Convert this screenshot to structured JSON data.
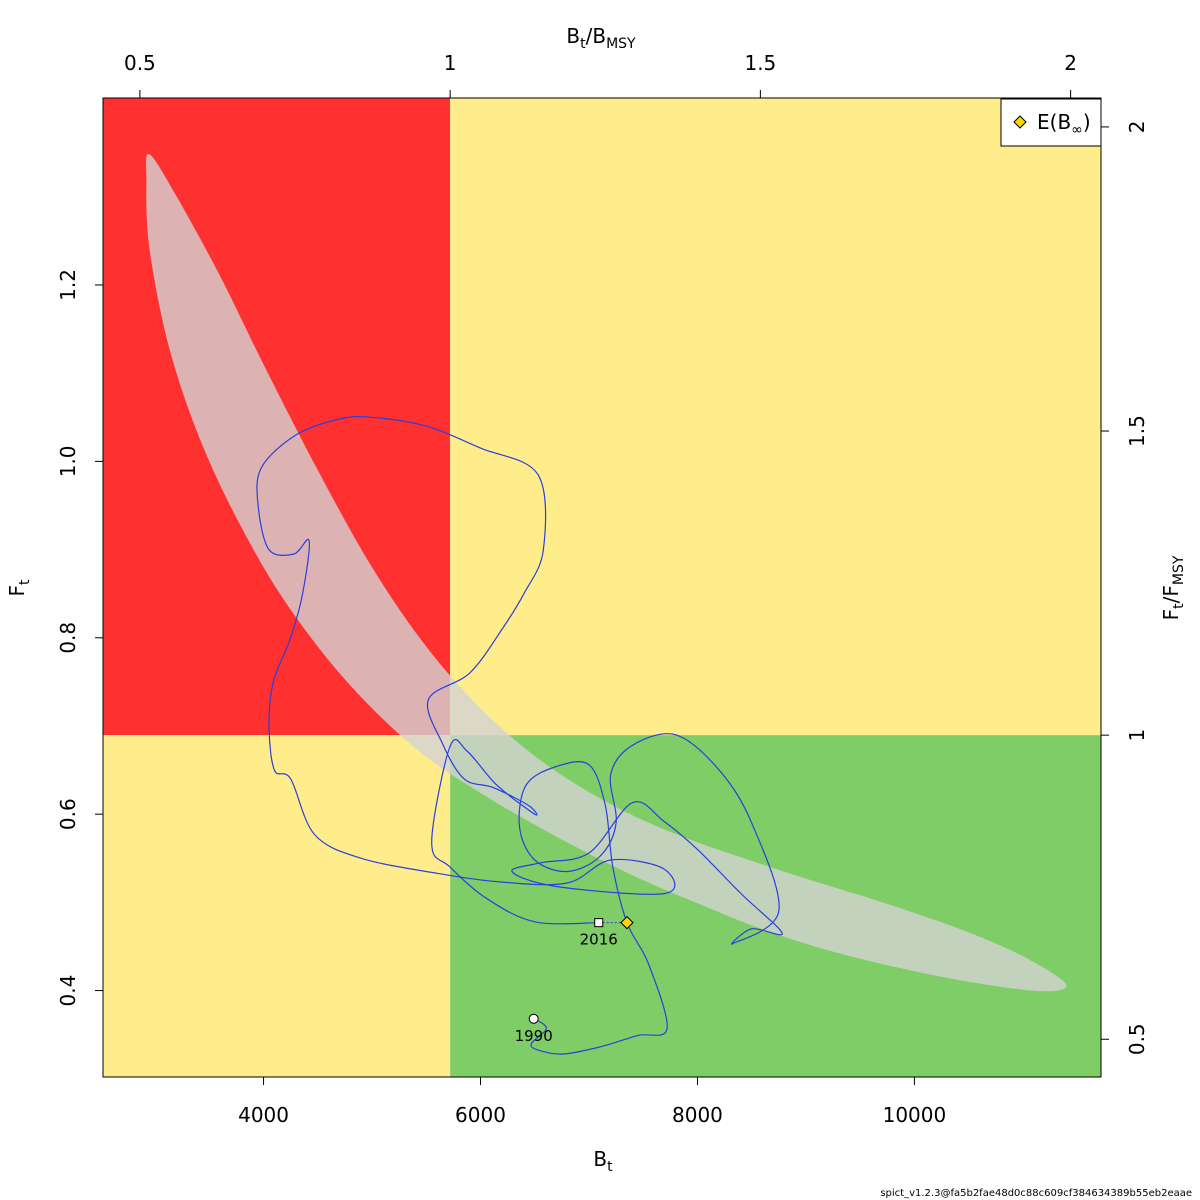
{
  "chart_data": {
    "type": "line",
    "xlabel": {
      "main": "B",
      "sub": "t"
    },
    "ylabel": {
      "main": "F",
      "sub": "t"
    },
    "x2label": {
      "num": "B",
      "num_sub": "t",
      "den": "B",
      "den_sub": "MSY"
    },
    "y2label": {
      "num": "F",
      "num_sub": "t",
      "den": "F",
      "den_sub": "MSY"
    },
    "xlim": [
      2520,
      11720
    ],
    "ylim": [
      0.302,
      1.412
    ],
    "x_ticks": [
      4000,
      6000,
      8000,
      10000
    ],
    "x_tick_labels": [
      "4000",
      "6000",
      "8000",
      "10000"
    ],
    "y_ticks": [
      0.4,
      0.6,
      0.8,
      1.0,
      1.2
    ],
    "y_tick_labels": [
      "0.4",
      "0.6",
      "0.8",
      "1.0",
      "1.2"
    ],
    "bmsy": 5720,
    "fmsy": 0.6896,
    "x2_ticks": [
      0.5,
      1,
      1.5,
      2
    ],
    "x2_tick_labels": [
      "0.5",
      "1",
      "1.5",
      "2"
    ],
    "y2_ticks": [
      0.5,
      1,
      1.5,
      2
    ],
    "y2_tick_labels": [
      "0.5",
      "1",
      "1.5",
      "2"
    ],
    "zone_colors": {
      "red": "#ff3030",
      "yellow": "#ffec8b",
      "green": "#7fcd66"
    },
    "ellipse_color": "#d3d3d3",
    "line_color": "#2b3fdc",
    "legend": {
      "position": "top-right",
      "entries": [
        {
          "label": "E(B",
          "sub": "∞",
          "close": ")",
          "marker": "diamond",
          "color": "#ffd700"
        }
      ]
    },
    "start": {
      "label": "1990",
      "x": 6490,
      "y": 0.368
    },
    "end": {
      "label": "2016",
      "x": 7090,
      "y": 0.477
    },
    "e_binf": {
      "x": 7350,
      "y": 0.477
    },
    "trajectory": [
      [
        6490,
        0.368
      ],
      [
        6580,
        0.362
      ],
      [
        6600,
        0.355
      ],
      [
        6470,
        0.34
      ],
      [
        6520,
        0.333
      ],
      [
        6750,
        0.328
      ],
      [
        7100,
        0.336
      ],
      [
        7450,
        0.349
      ],
      [
        7720,
        0.357
      ],
      [
        7550,
        0.43
      ],
      [
        7350,
        0.477
      ],
      [
        7220,
        0.54
      ],
      [
        7150,
        0.61
      ],
      [
        7000,
        0.656
      ],
      [
        6700,
        0.654
      ],
      [
        6420,
        0.633
      ],
      [
        6360,
        0.585
      ],
      [
        6500,
        0.548
      ],
      [
        6800,
        0.535
      ],
      [
        7100,
        0.552
      ],
      [
        7250,
        0.59
      ],
      [
        7200,
        0.645
      ],
      [
        7400,
        0.678
      ],
      [
        7800,
        0.69
      ],
      [
        8200,
        0.65
      ],
      [
        8500,
        0.59
      ],
      [
        8750,
        0.49
      ],
      [
        8320,
        0.453
      ],
      [
        8500,
        0.47
      ],
      [
        8780,
        0.465
      ],
      [
        8400,
        0.51
      ],
      [
        8000,
        0.56
      ],
      [
        7690,
        0.592
      ],
      [
        7400,
        0.613
      ],
      [
        7000,
        0.556
      ],
      [
        6560,
        0.545
      ],
      [
        6290,
        0.535
      ],
      [
        6700,
        0.518
      ],
      [
        7700,
        0.51
      ],
      [
        7690,
        0.538
      ],
      [
        7200,
        0.548
      ],
      [
        6800,
        0.522
      ],
      [
        6200,
        0.523
      ],
      [
        5600,
        0.533
      ],
      [
        4900,
        0.55
      ],
      [
        4470,
        0.577
      ],
      [
        4250,
        0.64
      ],
      [
        4100,
        0.65
      ],
      [
        4050,
        0.7
      ],
      [
        4090,
        0.75
      ],
      [
        4250,
        0.8
      ],
      [
        4360,
        0.85
      ],
      [
        4420,
        0.91
      ],
      [
        4280,
        0.895
      ],
      [
        4050,
        0.9
      ],
      [
        3950,
        0.95
      ],
      [
        3980,
        0.993
      ],
      [
        4300,
        1.03
      ],
      [
        4700,
        1.048
      ],
      [
        5000,
        1.05
      ],
      [
        5500,
        1.04
      ],
      [
        6000,
        1.015
      ],
      [
        6530,
        0.985
      ],
      [
        6580,
        0.9
      ],
      [
        6400,
        0.85
      ],
      [
        6200,
        0.81
      ],
      [
        5900,
        0.76
      ],
      [
        5520,
        0.73
      ],
      [
        5650,
        0.68
      ],
      [
        5850,
        0.64
      ],
      [
        6120,
        0.63
      ],
      [
        6440,
        0.61
      ],
      [
        6500,
        0.6
      ],
      [
        6150,
        0.633
      ],
      [
        5880,
        0.671
      ],
      [
        5720,
        0.677
      ],
      [
        5550,
        0.568
      ],
      [
        5720,
        0.54
      ],
      [
        6050,
        0.505
      ],
      [
        6500,
        0.478
      ],
      [
        7090,
        0.477
      ]
    ],
    "ellipse": [
      [
        2950,
        1.348
      ],
      [
        3200,
        1.3
      ],
      [
        3600,
        1.21
      ],
      [
        4000,
        1.11
      ],
      [
        4500,
        0.99
      ],
      [
        5000,
        0.88
      ],
      [
        5500,
        0.79
      ],
      [
        6000,
        0.72
      ],
      [
        6500,
        0.666
      ],
      [
        7000,
        0.625
      ],
      [
        7500,
        0.593
      ],
      [
        8000,
        0.568
      ],
      [
        8500,
        0.547
      ],
      [
        9000,
        0.527
      ],
      [
        9500,
        0.508
      ],
      [
        10000,
        0.488
      ],
      [
        10500,
        0.466
      ],
      [
        11000,
        0.439
      ],
      [
        11380,
        0.41
      ],
      [
        11320,
        0.4
      ],
      [
        11000,
        0.401
      ],
      [
        10500,
        0.41
      ],
      [
        10000,
        0.422
      ],
      [
        9500,
        0.436
      ],
      [
        9000,
        0.453
      ],
      [
        8500,
        0.474
      ],
      [
        8000,
        0.499
      ],
      [
        7500,
        0.525
      ],
      [
        7000,
        0.555
      ],
      [
        6500,
        0.588
      ],
      [
        6000,
        0.624
      ],
      [
        5500,
        0.665
      ],
      [
        5000,
        0.72
      ],
      [
        4500,
        0.79
      ],
      [
        4000,
        0.88
      ],
      [
        3500,
        1.0
      ],
      [
        3150,
        1.12
      ],
      [
        2950,
        1.24
      ],
      [
        2920,
        1.32
      ]
    ]
  },
  "footer": "spict_v1.2.3@fa5b2fae48d0c88c609cf384634389b55eb2eaae"
}
